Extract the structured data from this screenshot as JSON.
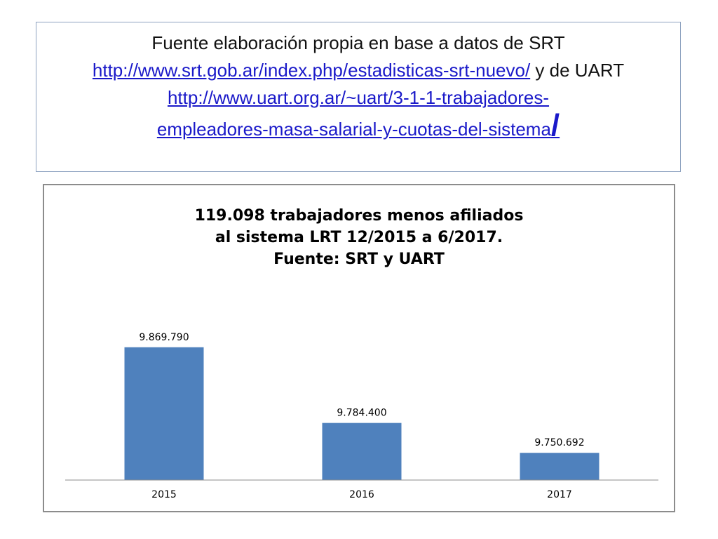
{
  "source_note": {
    "line1": "Fuente elaboración propia en base a datos de SRT",
    "link1": "http://www.srt.gob.ar/index.php/estadisticas-srt-nuevo/",
    "connector": " y de UART ",
    "link2_part1": "http://www.uart.org.ar/~uart/3-1-1-trabajadores-",
    "link2_part2": "empleadores-masa-salarial-y-cuotas-del-sistema",
    "link2_slash": "/"
  },
  "chart_data": {
    "type": "bar",
    "title_lines": [
      "119.098 trabajadores menos afiliados",
      "al sistema LRT 12/2015 a 6/2017.",
      "Fuente: SRT y UART"
    ],
    "categories": [
      "2015",
      "2016",
      "2017"
    ],
    "values": [
      9869790,
      9784400,
      9750692
    ],
    "value_labels": [
      "9.869.790",
      "9.784.400",
      "9.750.692"
    ],
    "ylim": [
      9720000,
      9910000
    ],
    "xlabel": "",
    "ylabel": "",
    "grid": false,
    "legend": "none",
    "bar_color": "#4f81bd"
  }
}
